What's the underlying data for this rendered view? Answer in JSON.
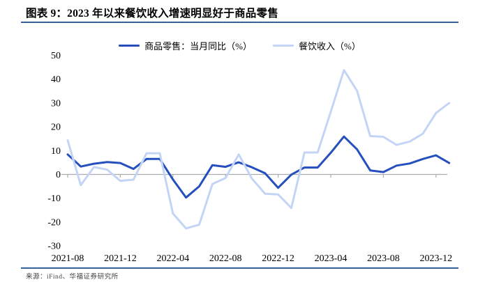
{
  "page": {
    "title": "图表 9：2023 年以来餐饮收入增速明显好于商品零售",
    "source": "来源：iFind、华福证券研究所"
  },
  "legend": {
    "items": [
      {
        "label": "商品零售：当月同比（%）",
        "color": "#264FBE"
      },
      {
        "label": "餐饮收入（%）",
        "color": "#C4D4F4"
      }
    ]
  },
  "colors": {
    "goods_line": "#264FBE",
    "catering_line": "#C4D4F4",
    "rule_blue": "#31639F",
    "axis_gray": "#ABABAB",
    "tick_text": "#000000",
    "source_text": "#3f3f3f"
  },
  "chart_data": {
    "type": "line",
    "categories": [
      "2021-07",
      "2021-08",
      "2021-09",
      "2021-10",
      "2021-11",
      "2021-12",
      "2022-01",
      "2022-02",
      "2022-03",
      "2022-04",
      "2022-05",
      "2022-06",
      "2022-07",
      "2022-08",
      "2022-09",
      "2022-10",
      "2022-11",
      "2022-12",
      "2023-01",
      "2023-02",
      "2023-03",
      "2023-04",
      "2023-05",
      "2023-06",
      "2023-07",
      "2023-08",
      "2023-09",
      "2023-10",
      "2023-11",
      "2023-12"
    ],
    "series": [
      {
        "name": "商品零售：当月同比（%）",
        "color": "#264FBE",
        "width": 3,
        "values": [
          8.4,
          3.3,
          4.5,
          5.2,
          4.8,
          2.3,
          6.5,
          6.5,
          -2.1,
          -9.7,
          -5.0,
          3.9,
          3.2,
          5.1,
          3.0,
          0.5,
          -5.6,
          -0.1,
          2.9,
          2.9,
          9.1,
          15.9,
          10.5,
          1.7,
          1.0,
          3.7,
          4.6,
          6.5,
          8.0,
          4.8
        ]
      },
      {
        "name": "餐饮收入（%）",
        "color": "#C4D4F4",
        "width": 3,
        "values": [
          14.3,
          -4.5,
          3.1,
          2.0,
          -2.7,
          -2.2,
          8.9,
          8.9,
          -16.4,
          -22.7,
          -21.1,
          -4.0,
          -1.5,
          8.4,
          -1.7,
          -8.1,
          -8.4,
          -14.1,
          9.2,
          9.2,
          26.3,
          43.8,
          35.1,
          16.1,
          15.8,
          12.4,
          13.8,
          17.1,
          25.8,
          30.0
        ]
      }
    ],
    "x_tick_labels": [
      "2021-08",
      "2021-12",
      "2022-04",
      "2022-08",
      "2022-12",
      "2023-04",
      "2023-08",
      "2023-12"
    ],
    "x_tick_indices": [
      1,
      5,
      9,
      13,
      17,
      21,
      25,
      29
    ],
    "y_ticks": [
      50,
      40,
      30,
      20,
      10,
      0,
      -10,
      -20,
      -30
    ],
    "ylim": [
      -30,
      50
    ],
    "grid": false,
    "legend_position": "top",
    "zero_axis_only": true
  }
}
